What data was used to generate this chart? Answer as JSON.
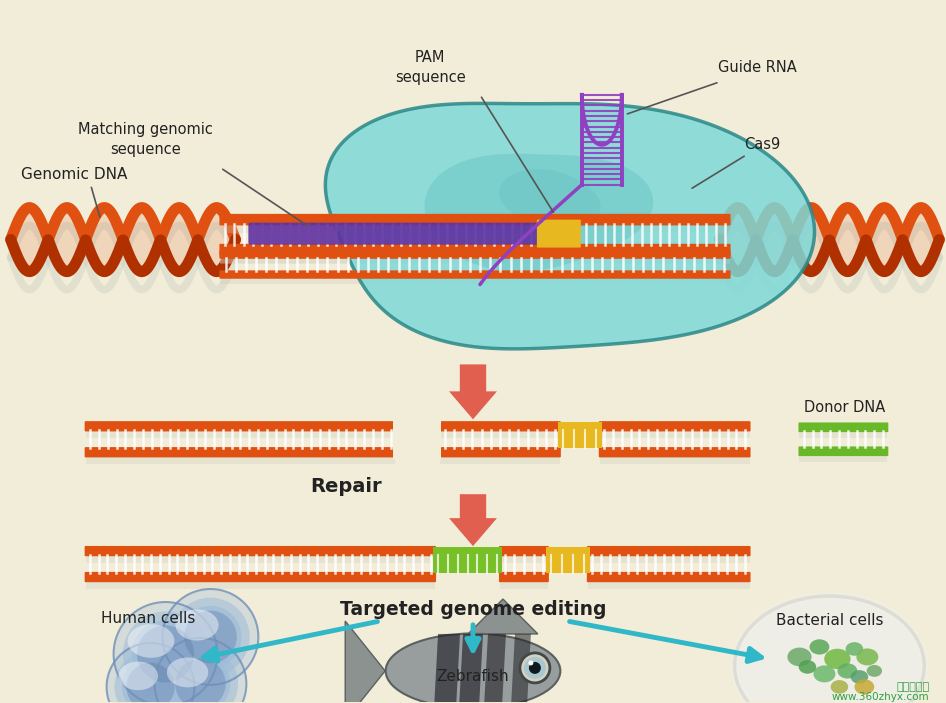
{
  "background_color": "#f2edd8",
  "labels": {
    "genomic_dna": "Genomic DNA",
    "pam_sequence": "PAM\nsequence",
    "guide_rna": "Guide RNA",
    "cas9": "Cas9",
    "matching_genomic": "Matching genomic\nsequence",
    "repair": "Repair",
    "donor_dna": "Donor DNA",
    "targeted_editing": "Targeted genome editing",
    "human_cells": "Human cells",
    "zebrafish": "Zebrafish",
    "bacterial_cells": "Bacterial cells"
  },
  "colors": {
    "background": "#f2edd8",
    "dna_orange": "#e05010",
    "dna_dark": "#b03000",
    "cas9_light": "#7dd8d8",
    "cas9_mid": "#5ababa",
    "cas9_dark": "#3a9898",
    "cas9_edge": "#2a8888",
    "guide_rna_purple": "#9040c0",
    "matching_seq_purple": "#6030a0",
    "pam_yellow": "#e8b820",
    "repair_arrow": "#e05040",
    "targeted_arrow": "#30b8c8",
    "donor_green": "#68b828",
    "repair_green": "#78c028",
    "repair_yellow": "#e8b820",
    "text_dark": "#222222",
    "shadow_color": "#c8ccc0"
  }
}
